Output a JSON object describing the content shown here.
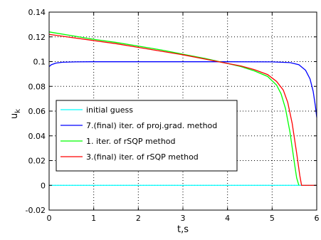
{
  "chart_data": {
    "type": "line",
    "title": "",
    "xlabel": "t,s",
    "ylabel": "u",
    "ylabel_subscript": "k",
    "xlim": [
      0,
      6
    ],
    "ylim": [
      -0.02,
      0.14
    ],
    "xticks": [
      0,
      1,
      2,
      3,
      4,
      5,
      6
    ],
    "xtick_labels": [
      "0",
      "1",
      "2",
      "3",
      "4",
      "5",
      "6"
    ],
    "yticks": [
      -0.02,
      0,
      0.02,
      0.04,
      0.06,
      0.08,
      0.1,
      0.12,
      0.14
    ],
    "ytick_labels": [
      "-0.02",
      "0",
      "0.02",
      "0.04",
      "0.06",
      "0.08",
      "0.1",
      "0.12",
      "0.14"
    ],
    "grid": true,
    "legend_position": "lower-left",
    "series": [
      {
        "name": "initial guess",
        "color": "#00ffff",
        "x": [
          0,
          6
        ],
        "y": [
          0,
          0
        ]
      },
      {
        "name": "7.(final) iter. of proj.grad. method",
        "color": "#0000ff",
        "x": [
          0,
          0.05,
          0.15,
          0.3,
          0.6,
          1,
          2,
          3,
          4,
          5,
          5.4,
          5.6,
          5.75,
          5.85,
          5.92,
          5.97,
          6
        ],
        "y": [
          0.096,
          0.0975,
          0.0988,
          0.0995,
          0.0998,
          0.0999,
          0.0999,
          0.0999,
          0.0999,
          0.0998,
          0.0992,
          0.0975,
          0.093,
          0.086,
          0.076,
          0.064,
          0.055
        ]
      },
      {
        "name": "1. iter. of rSQP method",
        "color": "#00ff00",
        "x": [
          0,
          0.5,
          1,
          1.5,
          2,
          2.5,
          3,
          3.5,
          4,
          4.3,
          4.6,
          4.9,
          5.1,
          5.2,
          5.3,
          5.4,
          5.5,
          5.55,
          5.6
        ],
        "y": [
          0.124,
          0.121,
          0.118,
          0.1155,
          0.1125,
          0.1095,
          0.106,
          0.1025,
          0.0985,
          0.096,
          0.0925,
          0.088,
          0.081,
          0.074,
          0.062,
          0.043,
          0.018,
          0.006,
          0
        ]
      },
      {
        "name": "3.(final) iter. of rSQP method",
        "color": "#ff0000",
        "x": [
          0,
          0.5,
          1,
          1.5,
          2,
          2.5,
          3,
          3.5,
          4,
          4.3,
          4.6,
          4.9,
          5.1,
          5.25,
          5.35,
          5.45,
          5.55,
          5.62,
          5.66,
          5.7,
          6
        ],
        "y": [
          0.122,
          0.1195,
          0.117,
          0.1145,
          0.1115,
          0.1085,
          0.1055,
          0.102,
          0.0985,
          0.0965,
          0.0935,
          0.0895,
          0.084,
          0.077,
          0.067,
          0.05,
          0.026,
          0.008,
          0,
          0,
          0
        ]
      }
    ]
  }
}
